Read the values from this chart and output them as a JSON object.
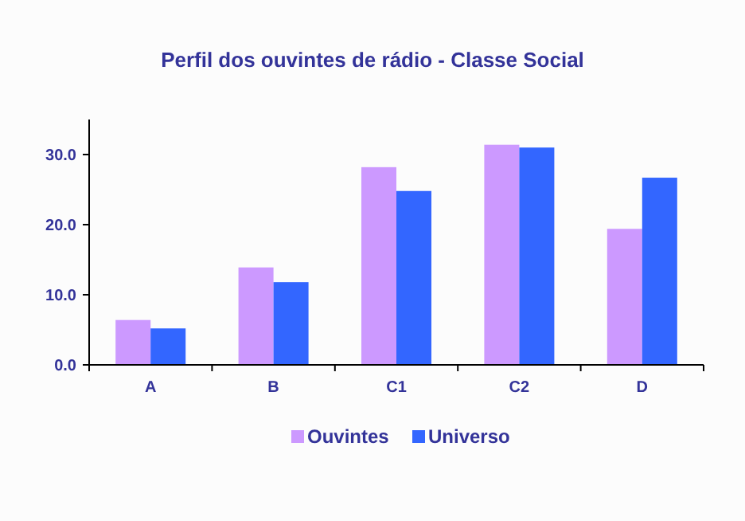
{
  "chart_data": {
    "type": "bar",
    "title": "Perfil dos ouvintes de rádio - Classe Social",
    "categories": [
      "A",
      "B",
      "C1",
      "C2",
      "D"
    ],
    "series": [
      {
        "name": "Ouvintes",
        "color": "#cc99ff",
        "values": [
          6.4,
          13.9,
          28.2,
          31.4,
          19.4
        ]
      },
      {
        "name": "Universo",
        "color": "#3366ff",
        "values": [
          5.2,
          11.8,
          24.8,
          31.0,
          26.7
        ]
      }
    ],
    "ylim": [
      0,
      35
    ],
    "yticks": [
      {
        "value": 0,
        "label": "0.0"
      },
      {
        "value": 10,
        "label": "10.0"
      },
      {
        "value": 20,
        "label": "20.0"
      },
      {
        "value": 30,
        "label": "30.0"
      }
    ],
    "grid": false,
    "legend": "bottom"
  }
}
